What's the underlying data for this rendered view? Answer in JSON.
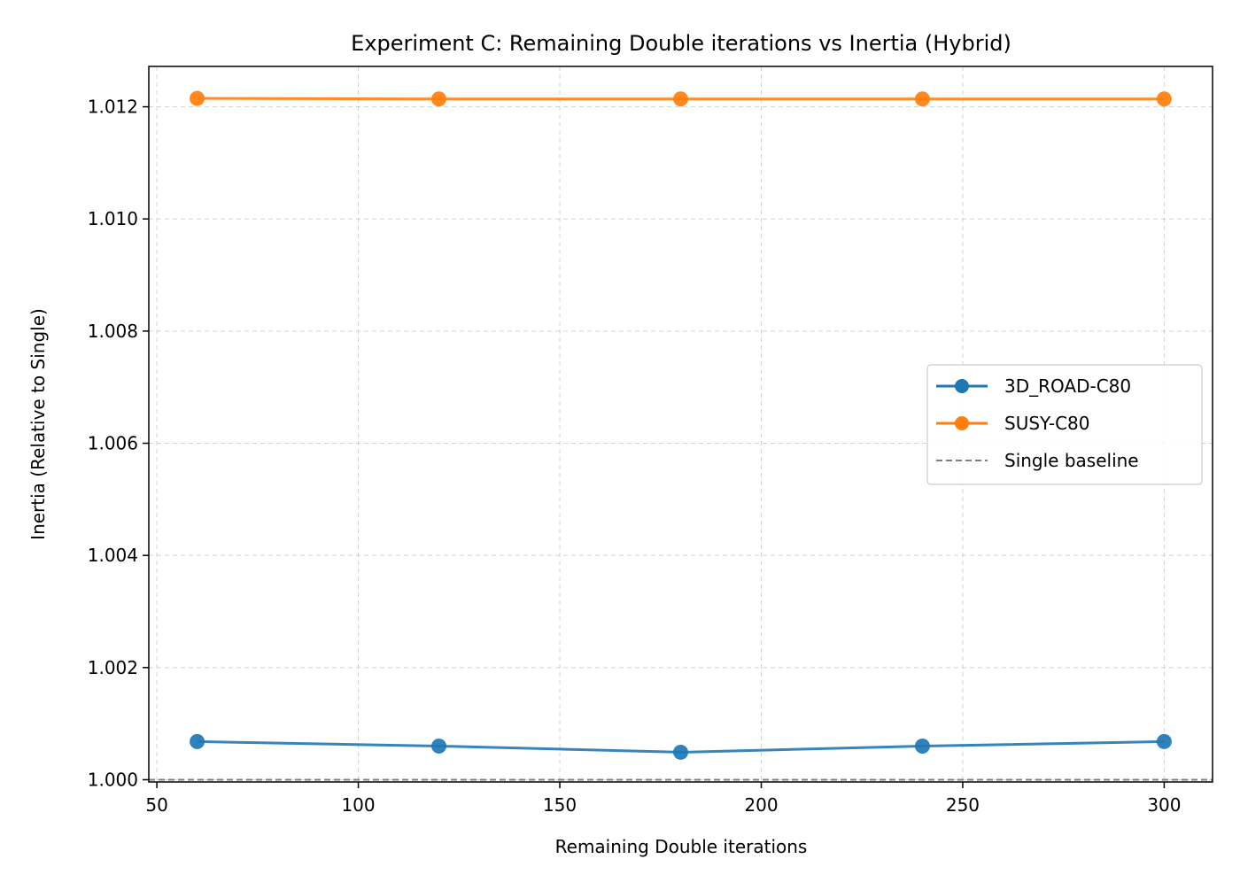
{
  "chart_data": {
    "type": "line",
    "title": "Experiment C: Remaining Double iterations vs Inertia (Hybrid)",
    "xlabel": "Remaining Double iterations",
    "ylabel": "Inertia (Relative to Single)",
    "x": [
      60,
      120,
      180,
      240,
      300
    ],
    "xlim": [
      48,
      312
    ],
    "ylim": [
      0.99996,
      1.01272
    ],
    "xticks": [
      50,
      100,
      150,
      200,
      250,
      300
    ],
    "xtick_labels": [
      "50",
      "100",
      "150",
      "200",
      "250",
      "300"
    ],
    "yticks": [
      1.0,
      1.002,
      1.004,
      1.006,
      1.008,
      1.01,
      1.012
    ],
    "ytick_labels": [
      "1.000",
      "1.002",
      "1.004",
      "1.006",
      "1.008",
      "1.010",
      "1.012"
    ],
    "grid": true,
    "legend_position": "center-right",
    "series": [
      {
        "name": "3D_ROAD-C80",
        "color": "#1f77b4",
        "marker": "circle",
        "values": [
          1.00068,
          1.0006,
          1.00049,
          1.0006,
          1.00068
        ]
      },
      {
        "name": "SUSY-C80",
        "color": "#ff7f0e",
        "marker": "circle",
        "values": [
          1.01215,
          1.01214,
          1.01214,
          1.01214,
          1.01214
        ]
      }
    ],
    "baseline": {
      "name": "Single baseline",
      "value": 1.0,
      "color": "#808080",
      "style": "dashed"
    }
  }
}
